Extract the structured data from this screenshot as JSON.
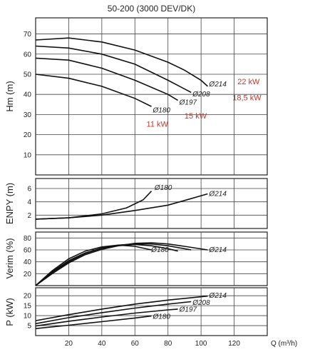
{
  "chart_data": {
    "type": "line",
    "title": "50-200 (3000 DEV/DK)",
    "xlabel": "Q (m³/h)",
    "xlim": [
      0,
      140
    ],
    "x_ticks": [
      "20",
      "40",
      "60",
      "80",
      "100",
      "120"
    ],
    "x_tick_values": [
      20,
      40,
      60,
      80,
      100,
      120
    ],
    "panels": [
      {
        "id": "hm",
        "ylabel": "Hm (m)",
        "ylim": [
          0,
          78
        ],
        "y_ticks": [
          "10",
          "20",
          "30",
          "40",
          "50",
          "60",
          "70"
        ],
        "y_tick_values": [
          10,
          20,
          30,
          40,
          50,
          60,
          70
        ],
        "series": [
          {
            "name": "Ø214",
            "x": [
              0,
              20,
              40,
              60,
              80,
              90,
              100,
              104
            ],
            "y": [
              67,
              68,
              66,
              62,
              56,
              52,
              47,
              44
            ]
          },
          {
            "name": "Ø208",
            "x": [
              0,
              20,
              40,
              60,
              80,
              94
            ],
            "y": [
              64,
              63,
              60,
              55,
              47,
              41
            ]
          },
          {
            "name": "Ø197",
            "x": [
              0,
              20,
              40,
              60,
              80,
              86
            ],
            "y": [
              58,
              57,
              53,
              47,
              40,
              37
            ]
          },
          {
            "name": "Ø180",
            "x": [
              0,
              20,
              40,
              60,
              70
            ],
            "y": [
              50,
              48,
              44,
              38,
              34
            ]
          }
        ],
        "curve_labels": [
          {
            "text": "Ø214",
            "x": 104,
            "y": 45
          },
          {
            "text": "Ø208",
            "x": 94,
            "y": 40
          },
          {
            "text": "Ø197",
            "x": 86,
            "y": 36
          },
          {
            "text": "Ø180",
            "x": 70,
            "y": 32
          }
        ],
        "power_labels": [
          {
            "text": "22 kW",
            "x": 122,
            "y": 45
          },
          {
            "text": "18,5 kW",
            "x": 119,
            "y": 37
          },
          {
            "text": "15 kW",
            "x": 90,
            "y": 28
          },
          {
            "text": "11 kW",
            "x": 67,
            "y": 24
          }
        ]
      },
      {
        "id": "enpy",
        "ylabel": "ENPY (m)",
        "ylim": [
          0,
          7.5
        ],
        "y_ticks": [
          "2",
          "4",
          "6"
        ],
        "y_tick_values": [
          2,
          4,
          6
        ],
        "series": [
          {
            "name": "Ø180",
            "x": [
              0,
              20,
              40,
              55,
              65,
              70
            ],
            "y": [
              1.4,
              1.6,
              2.2,
              3.1,
              4.3,
              5.6
            ]
          },
          {
            "name": "Ø214",
            "x": [
              0,
              20,
              40,
              60,
              80,
              90,
              104
            ],
            "y": [
              1.4,
              1.6,
              2.0,
              2.7,
              3.5,
              4.2,
              5.2
            ]
          }
        ],
        "curve_labels": [
          {
            "text": "Ø180",
            "x": 71,
            "y": 6.1
          },
          {
            "text": "Ø214",
            "x": 104,
            "y": 5.2
          }
        ]
      },
      {
        "id": "verim",
        "ylabel": "Verim (%)",
        "ylim": [
          0,
          90
        ],
        "y_ticks": [
          "20",
          "40",
          "60",
          "80"
        ],
        "y_tick_values": [
          20,
          40,
          60,
          80
        ],
        "series": [
          {
            "name": "Ø180",
            "x": [
              0,
              10,
              20,
              30,
              40,
              50,
              60,
              70
            ],
            "y": [
              0,
              25,
              45,
              58,
              65,
              68,
              66,
              60
            ]
          },
          {
            "name": "Ø197",
            "x": [
              0,
              10,
              20,
              30,
              40,
              50,
              60,
              70,
              80,
              86
            ],
            "y": [
              0,
              23,
              42,
              55,
              63,
              67,
              69,
              67,
              62,
              58
            ]
          },
          {
            "name": "Ø208",
            "x": [
              0,
              10,
              20,
              30,
              40,
              50,
              60,
              70,
              80,
              94
            ],
            "y": [
              0,
              22,
              40,
              54,
              63,
              68,
              70,
              70,
              67,
              60
            ]
          },
          {
            "name": "Ø214",
            "x": [
              0,
              10,
              20,
              30,
              40,
              50,
              60,
              70,
              80,
              90,
              104
            ],
            "y": [
              0,
              20,
              38,
              52,
              61,
              67,
              71,
              72,
              70,
              66,
              60
            ]
          }
        ],
        "curve_labels": [
          {
            "text": "Ø180",
            "x": 69,
            "y": 60
          },
          {
            "text": "Ø214",
            "x": 104,
            "y": 60
          }
        ]
      },
      {
        "id": "power",
        "ylabel": "P (kW)",
        "ylim": [
          0,
          24
        ],
        "y_ticks": [
          "5",
          "10",
          "15",
          "20"
        ],
        "y_tick_values": [
          5,
          10,
          15,
          20
        ],
        "series": [
          {
            "name": "Ø214",
            "x": [
              0,
              20,
              40,
              60,
              80,
              104
            ],
            "y": [
              7.5,
              10.5,
              13.3,
              15.8,
              17.8,
              19.8
            ]
          },
          {
            "name": "Ø208",
            "x": [
              0,
              20,
              40,
              60,
              80,
              94
            ],
            "y": [
              6,
              9,
              11.5,
              13.8,
              15.8,
              17
            ]
          },
          {
            "name": "Ø197",
            "x": [
              0,
              20,
              40,
              60,
              80,
              86
            ],
            "y": [
              4.8,
              7.2,
              9.3,
              11.3,
              12.9,
              13.3
            ]
          },
          {
            "name": "Ø180",
            "x": [
              0,
              20,
              40,
              60,
              70
            ],
            "y": [
              3.5,
              5.2,
              7,
              8.8,
              9.8
            ]
          }
        ],
        "curve_labels": [
          {
            "text": "Ø214",
            "x": 104,
            "y": 20
          },
          {
            "text": "Ø208",
            "x": 94,
            "y": 16.5
          },
          {
            "text": "Ø197",
            "x": 86,
            "y": 13
          },
          {
            "text": "Ø180",
            "x": 70,
            "y": 9.5
          }
        ]
      }
    ]
  }
}
